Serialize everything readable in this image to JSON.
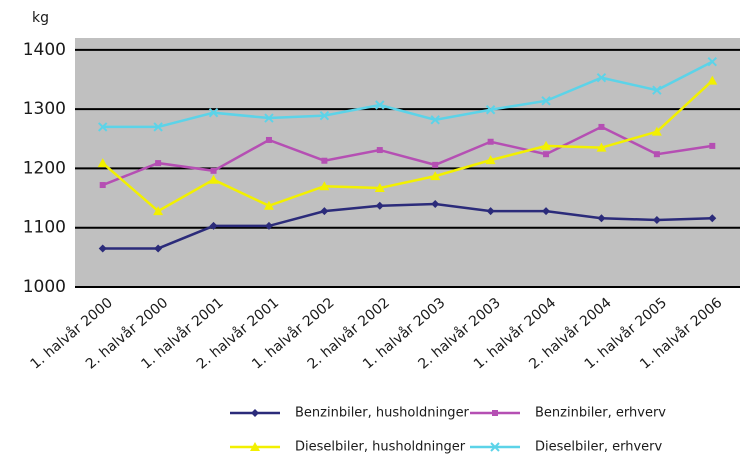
{
  "chart_data": {
    "type": "line",
    "y_label": "kg",
    "categories": [
      "1. halvår 2000",
      "2. halvår 2000",
      "1. halvår 2001",
      "2. halvår 2001",
      "1. halvår 2002",
      "2. halvår 2002",
      "1. halvår 2003",
      "2. halvår 2003",
      "1. halvår 2004",
      "2. halvår 2004",
      "1. halvår 2005",
      "1. halvår 2006"
    ],
    "series": [
      {
        "name": "Benzinbiler, husholdninger",
        "color": "#2b2b7a",
        "marker": "diamond",
        "values": [
          1065,
          1065,
          1103,
          1103,
          1128,
          1137,
          1140,
          1128,
          1128,
          1116,
          1113,
          1116
        ]
      },
      {
        "name": "Benzinbiler, erhverv",
        "color": "#b54fb3",
        "marker": "square",
        "values": [
          1172,
          1209,
          1196,
          1248,
          1213,
          1231,
          1206,
          1245,
          1224,
          1270,
          1224,
          1238
        ]
      },
      {
        "name": "Dieselbiler, husholdninger",
        "color": "#f2f000",
        "marker": "triangle",
        "values": [
          1209,
          1128,
          1181,
          1137,
          1170,
          1167,
          1187,
          1214,
          1238,
          1235,
          1262,
          1348
        ]
      },
      {
        "name": "Dieselbiler, erhverv",
        "color": "#5cd3e8",
        "marker": "x",
        "values": [
          1270,
          1270,
          1294,
          1285,
          1289,
          1307,
          1282,
          1299,
          1314,
          1353,
          1332,
          1380
        ]
      }
    ],
    "ylim": [
      1000,
      1420
    ],
    "yticks": [
      1000,
      1100,
      1200,
      1300,
      1400
    ],
    "grid": true
  }
}
